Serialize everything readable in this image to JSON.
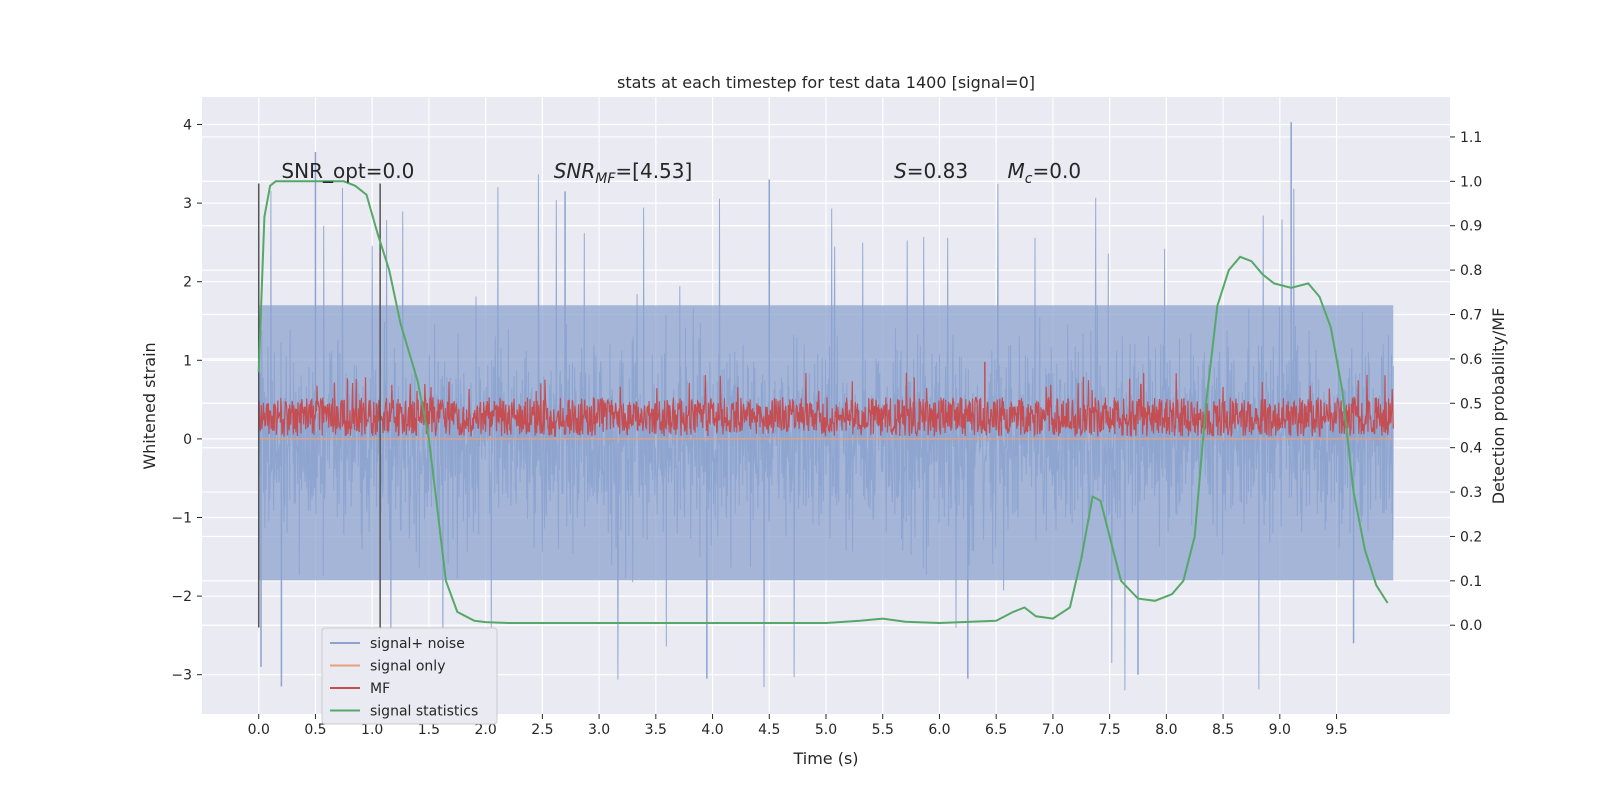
{
  "chart_data": {
    "type": "line",
    "title": "stats at each timestep for test data 1400 [signal=0]",
    "xlabel": "Time (s)",
    "ylabel": "Whitened strain",
    "y2label": "Detection probability/MF",
    "xlim": [
      -0.5,
      10.5
    ],
    "ylim": [
      -3.5,
      4.35
    ],
    "y2lim": [
      -0.2,
      1.19
    ],
    "xticks": [
      "0.0",
      "0.5",
      "1.0",
      "1.5",
      "2.0",
      "2.5",
      "3.0",
      "3.5",
      "4.0",
      "4.5",
      "5.0",
      "5.5",
      "6.0",
      "6.5",
      "7.0",
      "7.5",
      "8.0",
      "8.5",
      "9.0",
      "9.5"
    ],
    "yticks": [
      "−3",
      "−2",
      "−1",
      "0",
      "1",
      "2",
      "3",
      "4"
    ],
    "y2ticks": [
      "0.0",
      "0.1",
      "0.2",
      "0.3",
      "0.4",
      "0.5",
      "0.6",
      "0.7",
      "0.8",
      "0.9",
      "1.0",
      "1.1"
    ],
    "grid": true,
    "legend_position": "lower-left",
    "colors": {
      "signal_noise": "#8ca3cf",
      "signal_only": "#e8a07c",
      "mf": "#c44e52",
      "signal_statistics": "#55a868",
      "markers": "#555555",
      "background": "#eaeaf2"
    },
    "annotations": [
      {
        "key": "snr_opt",
        "text": "SNR_opt=0.0",
        "x": 0.2,
        "y": 3.32
      },
      {
        "key": "snr_mf",
        "label": "SNR",
        "sub": "MF",
        "tail": "=[4.53]",
        "x": 2.6,
        "y": 3.32
      },
      {
        "key": "s",
        "label": "S",
        "tail": "=0.83",
        "x": 5.6,
        "y": 3.32
      },
      {
        "key": "mc",
        "label": "M",
        "sub": "c",
        "tail": "=0.0",
        "x": 6.6,
        "y": 3.32
      }
    ],
    "markers": [
      {
        "x": 0.0,
        "y_range": [
          -2.4,
          3.25
        ]
      },
      {
        "x": 1.07,
        "y_range": [
          -2.4,
          3.25
        ]
      }
    ],
    "series": [
      {
        "name": "signal+ noise",
        "axis": "left",
        "x_range": [
          0.0,
          10.0
        ],
        "band": [
          -1.8,
          1.7
        ],
        "spike_max": 4.0,
        "spike_min": -3.2
      },
      {
        "name": "signal only",
        "axis": "left",
        "x_range": [
          0.0,
          10.0
        ],
        "values": "0"
      },
      {
        "name": "MF",
        "axis": "left",
        "x_range": [
          0.0,
          10.0
        ],
        "band": [
          0.0,
          0.6
        ],
        "spike_max": 0.98
      },
      {
        "name": "signal statistics",
        "axis": "right",
        "x": [
          0.0,
          0.05,
          0.1,
          0.15,
          0.25,
          0.4,
          0.6,
          0.75,
          0.85,
          0.95,
          1.05,
          1.15,
          1.25,
          1.4,
          1.5,
          1.58,
          1.65,
          1.75,
          1.9,
          2.0,
          2.2,
          2.5,
          3.0,
          3.5,
          4.0,
          4.5,
          5.0,
          5.3,
          5.5,
          5.7,
          6.0,
          6.5,
          6.65,
          6.75,
          6.85,
          7.0,
          7.15,
          7.25,
          7.35,
          7.42,
          7.5,
          7.6,
          7.75,
          7.9,
          8.05,
          8.15,
          8.25,
          8.35,
          8.45,
          8.55,
          8.65,
          8.75,
          8.85,
          8.95,
          9.1,
          9.25,
          9.35,
          9.45,
          9.55,
          9.65,
          9.75,
          9.85,
          9.95
        ],
        "values": [
          0.57,
          0.92,
          0.99,
          1.0,
          1.0,
          1.0,
          1.0,
          1.0,
          0.99,
          0.97,
          0.88,
          0.8,
          0.68,
          0.55,
          0.42,
          0.25,
          0.1,
          0.03,
          0.01,
          0.007,
          0.005,
          0.005,
          0.005,
          0.005,
          0.005,
          0.005,
          0.005,
          0.01,
          0.015,
          0.008,
          0.005,
          0.01,
          0.03,
          0.04,
          0.02,
          0.015,
          0.04,
          0.15,
          0.29,
          0.28,
          0.2,
          0.1,
          0.06,
          0.055,
          0.07,
          0.1,
          0.2,
          0.5,
          0.72,
          0.8,
          0.83,
          0.82,
          0.79,
          0.77,
          0.76,
          0.77,
          0.74,
          0.67,
          0.53,
          0.3,
          0.17,
          0.09,
          0.05
        ]
      }
    ]
  }
}
